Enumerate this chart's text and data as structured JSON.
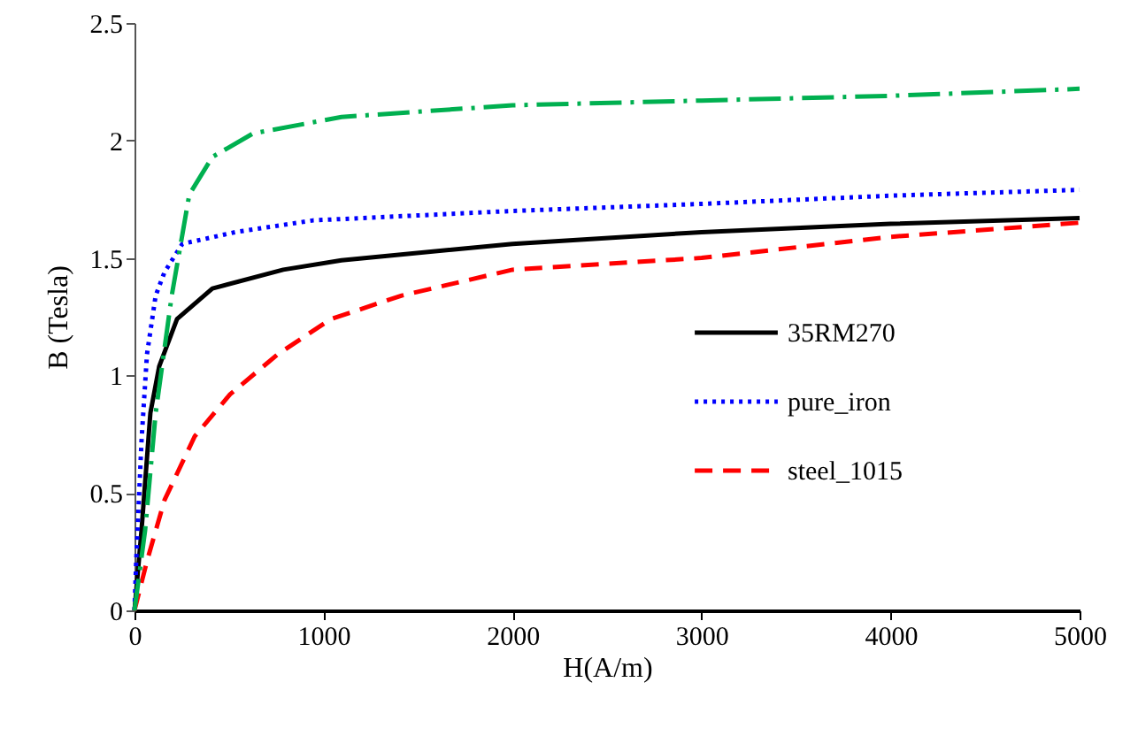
{
  "chart_data": {
    "type": "line",
    "xlabel": "H(A/m)",
    "ylabel": "B (Tesla)",
    "xlim": [
      0,
      5000
    ],
    "xticks": [
      0,
      1000,
      2000,
      3000,
      4000,
      5000
    ],
    "ylim": [
      0,
      2.5
    ],
    "yticks": [
      0,
      0.5,
      1,
      1.5,
      2,
      2.5
    ],
    "grid": false,
    "legend": "right",
    "marker": "none",
    "series": [
      {
        "name": "35RM270",
        "color": "#000000",
        "line_style": "solid",
        "x": [
          0,
          37,
          84,
          131,
          225,
          412,
          787,
          1095,
          2000,
          3000,
          4000,
          5000
        ],
        "values": [
          0,
          0.34,
          0.84,
          1.04,
          1.24,
          1.37,
          1.45,
          1.49,
          1.56,
          1.61,
          1.645,
          1.67
        ]
      },
      {
        "name": "pure_iron",
        "color": "#0000ff",
        "line_style": "dotted",
        "x": [
          0,
          9,
          37,
          66,
          112,
          159,
          253,
          534,
          946,
          2000,
          3000,
          4000,
          5000
        ],
        "values": [
          0,
          0.21,
          0.72,
          1.09,
          1.34,
          1.44,
          1.56,
          1.61,
          1.66,
          1.7,
          1.73,
          1.765,
          1.79
        ]
      },
      {
        "name": "steel_1015",
        "color": "#ff0000",
        "line_style": "dashed",
        "x": [
          0,
          66,
          159,
          318,
          506,
          758,
          1039,
          1414,
          2000,
          3000,
          4000,
          5000
        ],
        "values": [
          0,
          0.21,
          0.47,
          0.74,
          0.92,
          1.09,
          1.24,
          1.34,
          1.45,
          1.5,
          1.59,
          1.65
        ]
      },
      {
        "color": "#00b050",
        "line_style": "dashdot",
        "x": [
          0,
          56,
          112,
          197,
          290,
          412,
          627,
          1095,
          2000,
          3000,
          4000,
          5000
        ],
        "values": [
          0,
          0.34,
          0.84,
          1.34,
          1.77,
          1.93,
          2.03,
          2.1,
          2.15,
          2.17,
          2.19,
          2.22
        ]
      }
    ]
  }
}
